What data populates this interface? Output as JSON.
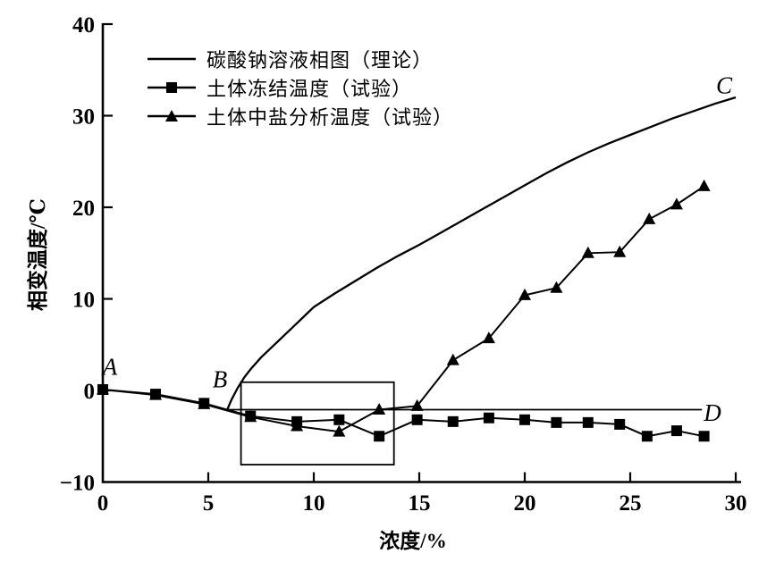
{
  "figure": {
    "background": "#ffffff",
    "ink": "#000000"
  },
  "chart_data": {
    "type": "line",
    "title": "",
    "xlabel": "浓度/%",
    "ylabel": "相变温度/℃",
    "xlim": [
      0,
      30
    ],
    "ylim": [
      -10,
      40
    ],
    "x_ticks": [
      0,
      5,
      10,
      15,
      20,
      25,
      30
    ],
    "y_ticks": [
      -10,
      0,
      10,
      20,
      30,
      40
    ],
    "grid": false,
    "legend_position": "upper-left-inside",
    "series": [
      {
        "name": "碳酸钠溶液相图（理论）",
        "marker": "none",
        "points": [
          [
            5.9,
            -2.1
          ],
          [
            6.1,
            -1.0
          ],
          [
            6.4,
            0.3
          ],
          [
            6.7,
            1.4
          ],
          [
            7,
            2.3
          ],
          [
            7.5,
            3.6
          ],
          [
            8,
            4.7
          ],
          [
            8.5,
            5.8
          ],
          [
            9,
            6.9
          ],
          [
            9.5,
            8.0
          ],
          [
            10,
            9.1
          ],
          [
            11,
            10.6
          ],
          [
            12,
            12.0
          ],
          [
            13,
            13.4
          ],
          [
            14,
            14.7
          ],
          [
            15,
            15.9
          ],
          [
            16,
            17.2
          ],
          [
            17,
            18.5
          ],
          [
            18,
            19.8
          ],
          [
            19,
            21.1
          ],
          [
            20,
            22.4
          ],
          [
            21,
            23.7
          ],
          [
            22,
            24.9
          ],
          [
            23,
            26.0
          ],
          [
            24,
            27.0
          ],
          [
            25,
            27.9
          ],
          [
            26,
            28.8
          ],
          [
            27,
            29.7
          ],
          [
            28,
            30.5
          ],
          [
            29,
            31.3
          ],
          [
            30,
            32.0
          ]
        ]
      },
      {
        "name": "土体冻结温度（试验）",
        "marker": "square",
        "points": [
          [
            0,
            0.1
          ],
          [
            2.5,
            -0.4
          ],
          [
            4.8,
            -1.4
          ],
          [
            7,
            -2.8
          ],
          [
            9.2,
            -3.4
          ],
          [
            11.2,
            -3.2
          ],
          [
            13.1,
            -5.0
          ],
          [
            14.9,
            -3.2
          ],
          [
            16.6,
            -3.4
          ],
          [
            18.3,
            -3.0
          ],
          [
            20,
            -3.2
          ],
          [
            21.5,
            -3.5
          ],
          [
            23,
            -3.5
          ],
          [
            24.5,
            -3.7
          ],
          [
            25.8,
            -5.0
          ],
          [
            27.2,
            -4.4
          ],
          [
            28.5,
            -5.0
          ]
        ]
      },
      {
        "name": "土体中盐分析温度（试验）",
        "marker": "triangle",
        "points": [
          [
            0,
            0.1
          ],
          [
            2.5,
            -0.5
          ],
          [
            4.8,
            -1.5
          ],
          [
            7,
            -2.9
          ],
          [
            9.2,
            -3.9
          ],
          [
            11.2,
            -4.5
          ],
          [
            13.1,
            -2.1
          ],
          [
            14.9,
            -1.7
          ],
          [
            16.6,
            3.3
          ],
          [
            18.3,
            5.7
          ],
          [
            20,
            10.4
          ],
          [
            21.5,
            11.2
          ],
          [
            23,
            15.0
          ],
          [
            24.5,
            15.1
          ],
          [
            25.9,
            18.7
          ],
          [
            27.2,
            20.3
          ],
          [
            28.5,
            22.3
          ]
        ]
      }
    ],
    "eutectic_line": {
      "from": [
        5.9,
        -2.1
      ],
      "to": [
        28.4,
        -2.1
      ]
    },
    "highlight_box": {
      "x0": 6.55,
      "y0": -8.1,
      "x1": 13.8,
      "y1": 0.9
    },
    "annotations": [
      {
        "text": "A",
        "x": 0.34,
        "y": 2.6
      },
      {
        "text": "B",
        "x": 5.55,
        "y": 1.2
      },
      {
        "text": "C",
        "x": 29.45,
        "y": 33.3
      },
      {
        "text": "D",
        "x": 28.9,
        "y": -2.45
      }
    ]
  }
}
